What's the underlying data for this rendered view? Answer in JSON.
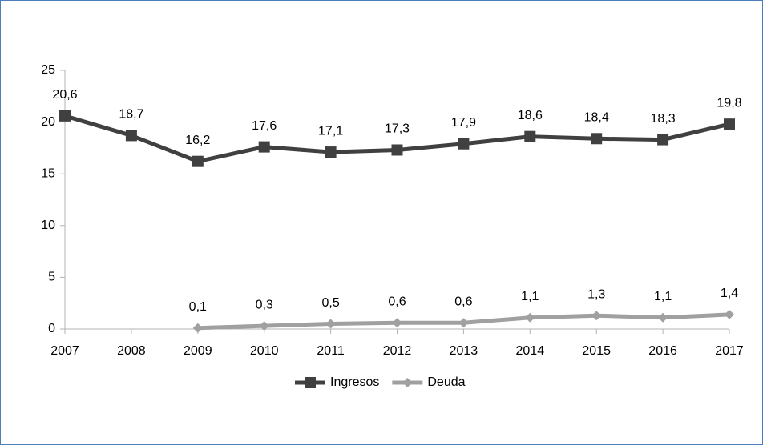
{
  "chart_data": {
    "type": "line",
    "categories": [
      "2007",
      "2008",
      "2009",
      "2010",
      "2011",
      "2012",
      "2013",
      "2014",
      "2015",
      "2016",
      "2017"
    ],
    "series": [
      {
        "name": "Ingresos",
        "color": "#404040",
        "marker": "square",
        "values": [
          20.6,
          18.7,
          16.2,
          17.6,
          17.1,
          17.3,
          17.9,
          18.6,
          18.4,
          18.3,
          19.8
        ],
        "value_labels": [
          "20,6",
          "18,7",
          "16,2",
          "17,6",
          "17,1",
          "17,3",
          "17,9",
          "18,6",
          "18,4",
          "18,3",
          "19,8"
        ]
      },
      {
        "name": "Deuda",
        "color": "#a0a0a0",
        "marker": "diamond",
        "values": [
          null,
          null,
          0.1,
          0.3,
          0.5,
          0.6,
          0.6,
          1.1,
          1.3,
          1.1,
          1.4
        ],
        "value_labels": [
          null,
          null,
          "0,1",
          "0,3",
          "0,5",
          "0,6",
          "0,6",
          "1,1",
          "1,3",
          "1,1",
          "1,4"
        ]
      }
    ],
    "ylim": [
      0,
      25
    ],
    "yticks": [
      0,
      5,
      10,
      15,
      20,
      25
    ],
    "grid": false,
    "legend": "bottom"
  }
}
